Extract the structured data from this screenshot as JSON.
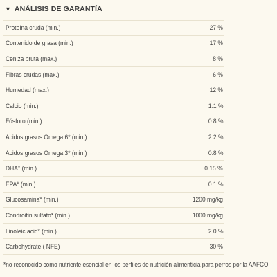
{
  "section": {
    "toggle_icon": "triangle-down-icon",
    "toggle_glyph": "▼",
    "title": "ANÁLISIS DE GARANTÍA"
  },
  "rows": [
    {
      "label": "Proteína cruda (min.)",
      "value": "27 %"
    },
    {
      "label": "Contenido de grasa (min.)",
      "value": "17 %"
    },
    {
      "label": "Ceniza bruta (max.)",
      "value": "8 %"
    },
    {
      "label": "Fibras crudas (max.)",
      "value": "6 %"
    },
    {
      "label": "Humedad (max.)",
      "value": "12 %"
    },
    {
      "label": "Calcio (min.)",
      "value": "1.1 %"
    },
    {
      "label": "Fósforo (min.)",
      "value": "0.8 %"
    },
    {
      "label": "Ácidos grasos Omega 6* (min.)",
      "value": "2.2 %"
    },
    {
      "label": "Ácidos grasos Omega 3* (min.)",
      "value": "0.8 %"
    },
    {
      "label": "DHA* (min.)",
      "value": "0.15 %"
    },
    {
      "label": "EPA* (min.)",
      "value": "0.1 %"
    },
    {
      "label": "Glucosamina* (min.)",
      "value": "1200 mg/kg"
    },
    {
      "label": "Condroitin sulfato* (min.)",
      "value": "1000 mg/kg"
    },
    {
      "label": "Linoleic acid* (min.)",
      "value": "2.0 %"
    },
    {
      "label": "Carbohydrate ( NFE)",
      "value": "30 %"
    }
  ],
  "footnote": "*no reconocido como nutriente esencial en los perfiles de nutrición alimenticia para perros por la AAFCO.",
  "colors": {
    "background": "#fcf9ef",
    "divider": "#e8e2cf",
    "text": "#424242"
  }
}
